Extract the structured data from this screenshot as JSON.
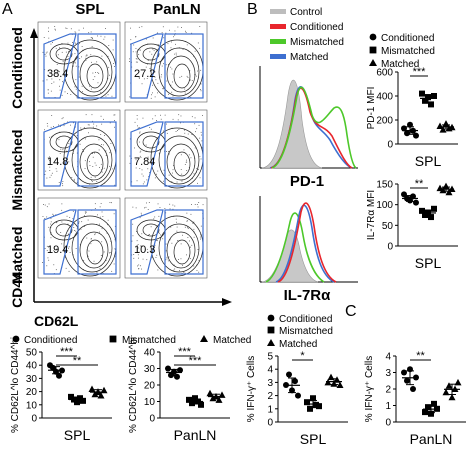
{
  "panel_letters": [
    "A",
    "B",
    "C"
  ],
  "panelA": {
    "col_titles": [
      "SPL",
      "PanLN"
    ],
    "row_labels": [
      "Conditioned",
      "Mismatched",
      "Matched"
    ],
    "y_axis": "CD44",
    "x_axis": "CD62L",
    "percents": [
      [
        "38.4",
        "27.2"
      ],
      [
        "14.8",
        "7.84"
      ],
      [
        "19.4",
        "10.3"
      ]
    ]
  },
  "panelB": {
    "legend": [
      "Control",
      "Conditioned",
      "Mismatched",
      "Matched"
    ],
    "colors": {
      "Control": "#bdbdbd",
      "Conditioned": "#e8262d",
      "Mismatched": "#4dc82a",
      "Matched": "#3d6fd0"
    },
    "hist_labels": [
      "PD-1",
      "IL-7Rα"
    ],
    "dot_legend": [
      "Conditioned",
      "Mismatched",
      "Matched"
    ]
  },
  "panelC": {
    "legend": [
      "Conditioned",
      "Mismatched",
      "Matched"
    ]
  },
  "chart_data": [
    {
      "type": "scatter",
      "panel": "A",
      "ylabel": "% CD62L^lo CD44^hi",
      "xlabel": "SPL",
      "ylim": [
        0,
        50
      ],
      "yticks": [
        "0",
        "10",
        "20",
        "30",
        "40",
        "50"
      ],
      "groups": [
        "Conditioned",
        "Mismatched",
        "Matched"
      ],
      "sig": [
        {
          "from": 0,
          "to": 1,
          "label": "***"
        },
        {
          "from": 0,
          "to": 2,
          "label": "**"
        }
      ],
      "values": [
        [
          40,
          38,
          35,
          32,
          36
        ],
        [
          16,
          14,
          12,
          15,
          13
        ],
        [
          22,
          18,
          20,
          17,
          21
        ]
      ]
    },
    {
      "type": "scatter",
      "panel": "A",
      "ylabel": "% CD62L^lo CD44^hi",
      "xlabel": "PanLN",
      "ylim": [
        0,
        40
      ],
      "yticks": [
        "0",
        "10",
        "20",
        "30",
        "40"
      ],
      "groups": [
        "Conditioned",
        "Mismatched",
        "Matched"
      ],
      "sig": [
        {
          "from": 0,
          "to": 1,
          "label": "***"
        },
        {
          "from": 0,
          "to": 2,
          "label": "***"
        }
      ],
      "values": [
        [
          30,
          26,
          28,
          25,
          29
        ],
        [
          11,
          9,
          12,
          10,
          8
        ],
        [
          15,
          12,
          13,
          11,
          14
        ]
      ]
    },
    {
      "type": "scatter",
      "panel": "B",
      "ylabel": "PD-1 MFI",
      "xlabel": "SPL",
      "ylim": [
        0,
        600
      ],
      "yticks": [
        "0",
        "200",
        "400",
        "600"
      ],
      "groups": [
        "Conditioned",
        "Mismatched",
        "Matched"
      ],
      "sig": [
        {
          "from": 0,
          "to": 1,
          "label": "***"
        }
      ],
      "values": [
        [
          130,
          90,
          160,
          110,
          70
        ],
        [
          420,
          360,
          390,
          330,
          400
        ],
        [
          150,
          120,
          170,
          130,
          140
        ]
      ]
    },
    {
      "type": "scatter",
      "panel": "B",
      "ylabel": "IL-7Rα MFI",
      "xlabel": "SPL",
      "ylim": [
        0,
        150
      ],
      "yticks": [
        "0",
        "50",
        "100",
        "150"
      ],
      "groups": [
        "Conditioned",
        "Mismatched",
        "Matched"
      ],
      "sig": [
        {
          "from": 0,
          "to": 1,
          "label": "**"
        }
      ],
      "values": [
        [
          125,
          115,
          110,
          120,
          105
        ],
        [
          85,
          75,
          80,
          70,
          90
        ],
        [
          140,
          135,
          145,
          130,
          138
        ]
      ]
    },
    {
      "type": "scatter",
      "panel": "C",
      "ylabel": "% IFN-γ⁺ Cells",
      "xlabel": "SPL",
      "ylim": [
        0,
        5
      ],
      "yticks": [
        "0",
        "1",
        "2",
        "3",
        "4",
        "5"
      ],
      "groups": [
        "Conditioned",
        "Mismatched",
        "Matched"
      ],
      "sig": [
        {
          "from": 0,
          "to": 1,
          "label": "*"
        }
      ],
      "values": [
        [
          2.8,
          3.6,
          2.4,
          3.1,
          2.0
        ],
        [
          1.5,
          1.0,
          1.8,
          1.3,
          1.2
        ],
        [
          3.0,
          3.4,
          2.9,
          3.2,
          2.8
        ]
      ]
    },
    {
      "type": "scatter",
      "panel": "C",
      "ylabel": "% IFN-γ⁺ Cells",
      "xlabel": "PanLN",
      "ylim": [
        0,
        4
      ],
      "yticks": [
        "0",
        "1",
        "2",
        "3",
        "4"
      ],
      "groups": [
        "Conditioned",
        "Mismatched",
        "Matched"
      ],
      "sig": [
        {
          "from": 0,
          "to": 1,
          "label": "**"
        }
      ],
      "values": [
        [
          3.0,
          2.5,
          3.2,
          2.0,
          2.7
        ],
        [
          0.6,
          0.9,
          0.5,
          1.1,
          0.8
        ],
        [
          1.8,
          2.2,
          1.5,
          2.0,
          2.4
        ]
      ]
    }
  ]
}
